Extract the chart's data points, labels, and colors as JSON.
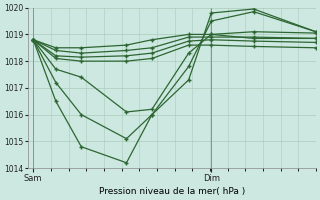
{
  "background_color": "#cce8e0",
  "grid_color": "#aaccbb",
  "line_color": "#2d6632",
  "ylabel_min": 1014,
  "ylabel_max": 1020,
  "yticks": [
    1014,
    1015,
    1016,
    1017,
    1018,
    1019,
    1020
  ],
  "xlabel": "Pression niveau de la mer( hPa )",
  "xtick_labels": [
    "Sam",
    "Dim"
  ],
  "xtick_positions": [
    0.0,
    0.63
  ],
  "vline_x_sam": 0.0,
  "vline_x_dim": 0.63,
  "series": [
    [
      1018.8,
      1018.5,
      1018.5,
      1018.6,
      1018.8,
      1019.0,
      1019.0,
      1019.1,
      1019.05
    ],
    [
      1018.8,
      1018.4,
      1018.3,
      1018.4,
      1018.5,
      1018.9,
      1018.9,
      1018.9,
      1018.85
    ],
    [
      1018.8,
      1018.2,
      1018.15,
      1018.2,
      1018.3,
      1018.75,
      1018.8,
      1018.75,
      1018.7
    ],
    [
      1018.8,
      1018.1,
      1018.0,
      1018.0,
      1018.1,
      1018.6,
      1018.6,
      1018.55,
      1018.5
    ],
    [
      1018.8,
      1017.7,
      1017.4,
      1016.1,
      1016.2,
      1018.3,
      1019.0,
      1018.85,
      1018.85
    ],
    [
      1018.8,
      1017.2,
      1016.0,
      1015.1,
      1016.0,
      1017.8,
      1019.5,
      1019.85,
      1019.1
    ],
    [
      1018.8,
      1016.5,
      1014.8,
      1014.2,
      1016.0,
      1017.3,
      1019.8,
      1019.95,
      1019.1
    ]
  ],
  "x_positions": [
    0.0,
    0.08,
    0.17,
    0.33,
    0.42,
    0.55,
    0.63,
    0.78,
    1.0
  ]
}
